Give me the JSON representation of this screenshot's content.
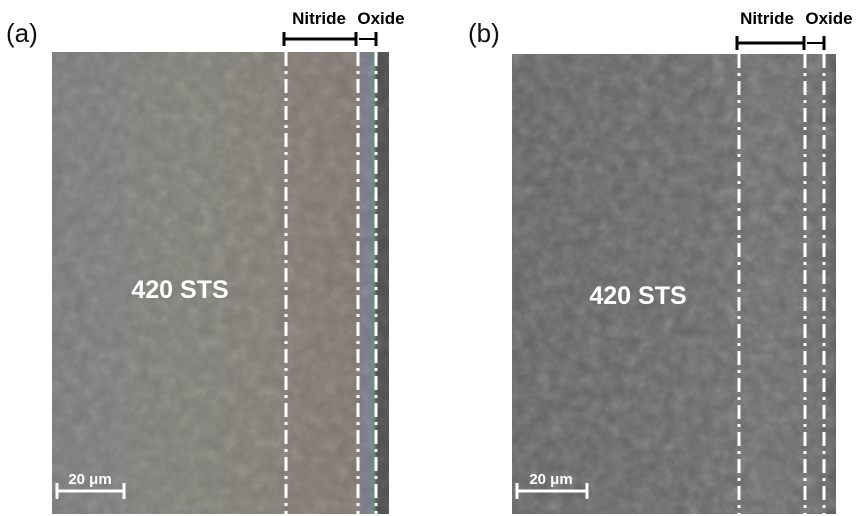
{
  "panels": [
    {
      "label": "(a)",
      "nitride": "Nitride",
      "oxide": "Oxide",
      "material": "420 STS",
      "scale_bar": "20 μm"
    },
    {
      "label": "(b)",
      "nitride": "Nitride",
      "oxide": "Oxide",
      "material": "420 STS",
      "scale_bar": "20 μm"
    }
  ]
}
